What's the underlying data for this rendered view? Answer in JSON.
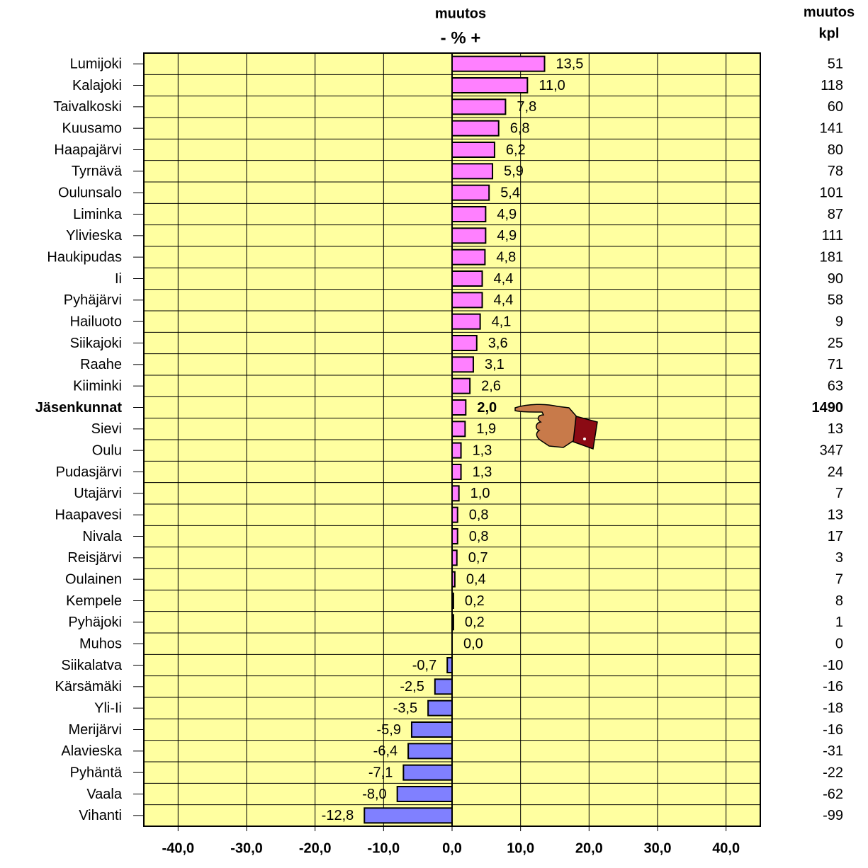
{
  "chart_data": {
    "type": "bar",
    "orientation": "horizontal",
    "title": "muutos",
    "subtitle": "- % +",
    "categories": [
      "Lumijoki",
      "Kalajoki",
      "Taivalkoski",
      "Kuusamo",
      "Haapajärvi",
      "Tyrnävä",
      "Oulunsalo",
      "Liminka",
      "Ylivieska",
      "Haukipudas",
      "Ii",
      "Pyhäjärvi",
      "Hailuoto",
      "Siikajoki",
      "Raahe",
      "Kiiminki",
      "Jäsenkunnat",
      "Sievi",
      "Oulu",
      "Pudasjärvi",
      "Utajärvi",
      "Haapavesi",
      "Nivala",
      "Reisjärvi",
      "Oulainen",
      "Kempele",
      "Pyhäjoki",
      "Muhos",
      "Siikalatva",
      "Kärsämäki",
      "Yli-Ii",
      "Merijärvi",
      "Alavieska",
      "Pyhäntä",
      "Vaala",
      "Vihanti"
    ],
    "values": [
      13.5,
      11.0,
      7.8,
      6.8,
      6.2,
      5.9,
      5.4,
      4.9,
      4.9,
      4.8,
      4.4,
      4.4,
      4.1,
      3.6,
      3.1,
      2.6,
      2.0,
      1.9,
      1.3,
      1.3,
      1.0,
      0.8,
      0.8,
      0.7,
      0.4,
      0.2,
      0.2,
      0.0,
      -0.7,
      -2.5,
      -3.5,
      -5.9,
      -6.4,
      -7.1,
      -8.0,
      -12.8
    ],
    "value_labels": [
      "13,5",
      "11,0",
      "7,8",
      "6,8",
      "6,2",
      "5,9",
      "5,4",
      "4,9",
      "4,9",
      "4,8",
      "4,4",
      "4,4",
      "4,1",
      "3,6",
      "3,1",
      "2,6",
      "2,0",
      "1,9",
      "1,3",
      "1,3",
      "1,0",
      "0,8",
      "0,8",
      "0,7",
      "0,4",
      "0,2",
      "0,2",
      "0,0",
      "-0,7",
      "-2,5",
      "-3,5",
      "-5,9",
      "-6,4",
      "-7,1",
      "-8,0",
      "-12,8"
    ],
    "color_positive": "#ff80ff",
    "color_negative": "#8080ff",
    "highlight": 16,
    "xlim": [
      -45,
      45
    ],
    "xticks": [
      {
        "value": -40,
        "label": "-40,0"
      },
      {
        "value": -30,
        "label": "-30,0"
      },
      {
        "value": -20,
        "label": "-20,0"
      },
      {
        "value": -10,
        "label": "-10,0"
      },
      {
        "value": 0,
        "label": "0,0"
      },
      {
        "value": 10,
        "label": "10,0"
      },
      {
        "value": 20,
        "label": "20,0"
      },
      {
        "value": 30,
        "label": "30,0"
      },
      {
        "value": 40,
        "label": "40,0"
      }
    ],
    "grid": true,
    "background": "#ffffa0",
    "count_column": {
      "title": "muutos",
      "unit": "kpl",
      "values": [
        51,
        118,
        60,
        141,
        80,
        78,
        101,
        87,
        111,
        181,
        90,
        58,
        9,
        25,
        71,
        63,
        1490,
        13,
        347,
        24,
        7,
        13,
        17,
        3,
        7,
        8,
        1,
        0,
        -10,
        -16,
        -18,
        -16,
        -31,
        -22,
        -62,
        -99
      ],
      "color_positive": "#ff0000",
      "color_negative": "#0000ff",
      "color_highlight": "#cc0000"
    }
  }
}
